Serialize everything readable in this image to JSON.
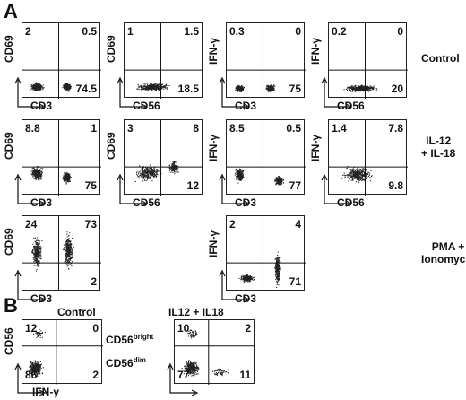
{
  "panel_a": {
    "letter": "A",
    "rows": [
      {
        "condition_lines": [
          "Control"
        ],
        "plots": [
          {
            "ylabel": "CD69",
            "xlabel": "CD3",
            "ul": "2",
            "ur": "0.5",
            "lr": "74.5"
          },
          {
            "ylabel": "CD69",
            "xlabel": "CD56",
            "ul": "1",
            "ur": "1.5",
            "lr": "18.5"
          },
          {
            "ylabel": "IFN-γ",
            "xlabel": "CD3",
            "ul": "0.3",
            "ur": "0",
            "lr": "75"
          },
          {
            "ylabel": "IFN-γ",
            "xlabel": "CD56",
            "ul": "0.2",
            "ur": "0",
            "lr": "20"
          }
        ]
      },
      {
        "condition_lines": [
          "IL-12",
          "+ IL-18"
        ],
        "plots": [
          {
            "ylabel": "CD69",
            "xlabel": "CD3",
            "ul": "8.8",
            "ur": "1",
            "lr": "75"
          },
          {
            "ylabel": "CD69",
            "xlabel": "CD56",
            "ul": "3",
            "ur": "8",
            "lr": "12"
          },
          {
            "ylabel": "IFN-γ",
            "xlabel": "CD3",
            "ul": "8.5",
            "ur": "0.5",
            "lr": "77"
          },
          {
            "ylabel": "IFN-γ",
            "xlabel": "CD56",
            "ul": "1.4",
            "ur": "7.8",
            "lr": "9.8"
          }
        ]
      },
      {
        "condition_lines": [
          "PMA +",
          "Ionomycin"
        ],
        "plots": [
          {
            "ylabel": "CD69",
            "xlabel": "CD3",
            "ul": "24",
            "ur": "73",
            "lr": "2"
          },
          {
            "ylabel": "IFN-γ",
            "xlabel": "CD3",
            "ul": "2",
            "ur": "4",
            "lr": "71"
          }
        ]
      }
    ]
  },
  "panel_b": {
    "letter": "B",
    "plots": [
      {
        "title": "Control",
        "ylabel": "CD56",
        "xlabel": "IFN-γ",
        "ul": "12",
        "ur": "0",
        "ll": "86",
        "lr": "2"
      },
      {
        "title": "IL12 + IL18",
        "ul": "10",
        "ur": "2",
        "ll": "77",
        "lr": "11"
      }
    ],
    "bright_label": "CD56",
    "bright_sup": "bright",
    "dim_label": "CD56",
    "dim_sup": "dim"
  }
}
